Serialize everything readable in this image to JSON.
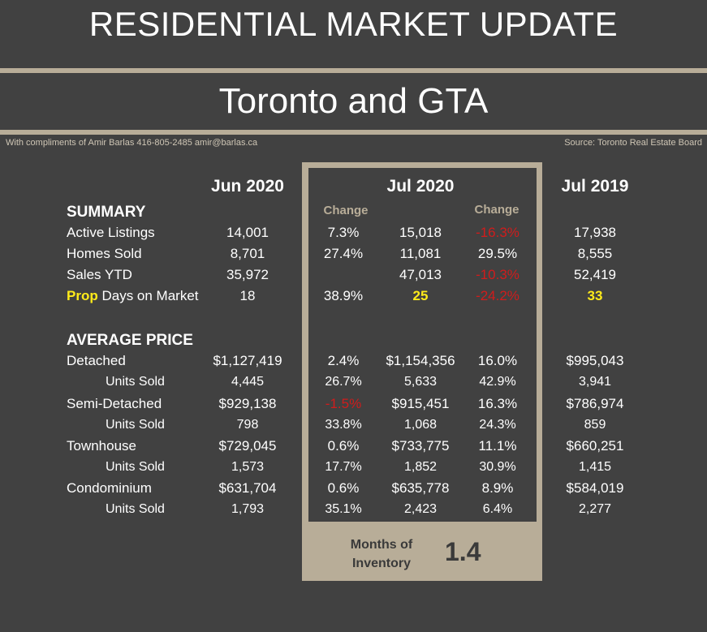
{
  "header": {
    "title": "RESIDENTIAL MARKET UPDATE",
    "subtitle": "Toronto and GTA",
    "credit": "With compliments of Amir Barlas 416-805-2485 amir@barlas.ca",
    "source": "Source: Toronto Real Estate Board"
  },
  "columns": {
    "jun2020": "Jun 2020",
    "jul2020": "Jul 2020",
    "jul2019": "Jul 2019",
    "change1": "Change",
    "change2": "Change"
  },
  "summary": {
    "heading": "SUMMARY",
    "rows": [
      {
        "label": "Active Listings",
        "jun": "14,001",
        "chg1": "7.3%",
        "jul": "15,018",
        "chg2": "-16.3%",
        "jul19": "17,938"
      },
      {
        "label": "Homes Sold",
        "jun": "8,701",
        "chg1": "27.4%",
        "jul": "11,081",
        "chg2": "29.5%",
        "jul19": "8,555"
      },
      {
        "label": "Sales YTD",
        "jun": "35,972",
        "chg1": "",
        "jul": "47,013",
        "chg2": "-10.3%",
        "jul19": "52,419"
      }
    ],
    "dom": {
      "prefix": "Prop",
      "label": "Days on Market",
      "jun": "18",
      "chg1": "38.9%",
      "jul": "25",
      "chg2": "-24.2%",
      "jul19": "33"
    }
  },
  "average_price": {
    "heading": "AVERAGE PRICE",
    "rows": [
      {
        "label": "Detached",
        "jun": "$1,127,419",
        "chg1": "2.4%",
        "jul": "$1,154,356",
        "chg2": "16.0%",
        "jul19": "$995,043"
      },
      {
        "label": "Units Sold",
        "jun": "4,445",
        "chg1": "26.7%",
        "jul": "5,633",
        "chg2": "42.9%",
        "jul19": "3,941"
      },
      {
        "label": "Semi-Detached",
        "jun": "$929,138",
        "chg1": "-1.5%",
        "jul": "$915,451",
        "chg2": "16.3%",
        "jul19": "$786,974"
      },
      {
        "label": "Units Sold",
        "jun": "798",
        "chg1": "33.8%",
        "jul": "1,068",
        "chg2": "24.3%",
        "jul19": "859"
      },
      {
        "label": "Townhouse",
        "jun": "$729,045",
        "chg1": "0.6%",
        "jul": "$733,775",
        "chg2": "11.1%",
        "jul19": "$660,251"
      },
      {
        "label": "Units Sold",
        "jun": "1,573",
        "chg1": "17.7%",
        "jul": "1,852",
        "chg2": "30.9%",
        "jul19": "1,415"
      },
      {
        "label": "Condominium",
        "jun": "$631,704",
        "chg1": "0.6%",
        "jul": "$635,778",
        "chg2": "8.9%",
        "jul19": "$584,019"
      },
      {
        "label": "Units Sold",
        "jun": "1,793",
        "chg1": "35.1%",
        "jul": "2,423",
        "chg2": "6.4%",
        "jul19": "2,277"
      }
    ]
  },
  "inventory": {
    "label": "Months of Inventory",
    "value": "1.4"
  },
  "colors": {
    "background": "#414141",
    "accent": "#b8ad98",
    "negative": "#d01c1c",
    "highlight": "#ffeb1a"
  }
}
